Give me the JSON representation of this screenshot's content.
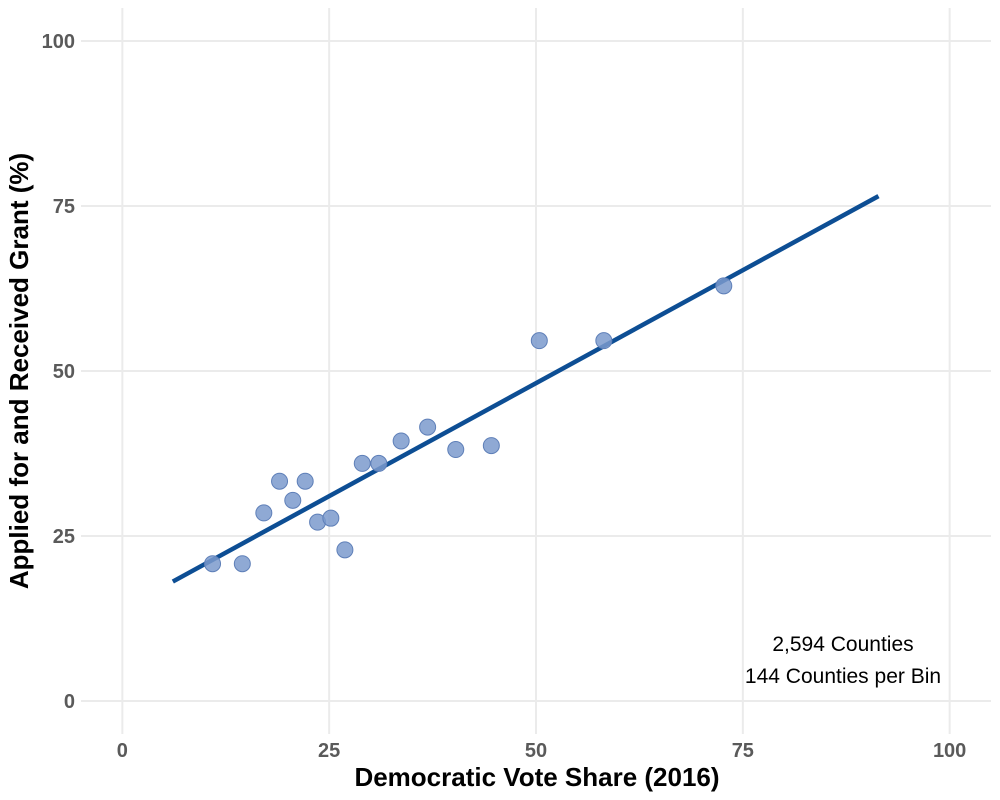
{
  "chart_data": {
    "type": "scatter",
    "title": "",
    "xlabel": "Democratic Vote Share (2016)",
    "ylabel": "Applied for and Received Grant (%)",
    "xlim": [
      -5,
      105
    ],
    "ylim": [
      -5,
      105
    ],
    "x_ticks": [
      0,
      25,
      50,
      75,
      100
    ],
    "y_ticks": [
      0,
      25,
      50,
      75,
      100
    ],
    "x_tick_labels": [
      "0",
      "25",
      "50",
      "75",
      "100"
    ],
    "y_tick_labels": [
      "0",
      "25",
      "50",
      "75",
      "100"
    ],
    "grid": true,
    "legend": "none",
    "points": [
      {
        "x": 10.9,
        "y": 20.8
      },
      {
        "x": 14.5,
        "y": 20.8
      },
      {
        "x": 17.1,
        "y": 28.5
      },
      {
        "x": 19.0,
        "y": 33.3
      },
      {
        "x": 20.6,
        "y": 30.4
      },
      {
        "x": 22.1,
        "y": 33.3
      },
      {
        "x": 23.6,
        "y": 27.1
      },
      {
        "x": 25.2,
        "y": 27.7
      },
      {
        "x": 26.9,
        "y": 22.9
      },
      {
        "x": 29.0,
        "y": 36.0
      },
      {
        "x": 31.0,
        "y": 36.0
      },
      {
        "x": 33.7,
        "y": 39.4
      },
      {
        "x": 36.9,
        "y": 41.5
      },
      {
        "x": 40.3,
        "y": 38.1
      },
      {
        "x": 44.6,
        "y": 38.7
      },
      {
        "x": 50.4,
        "y": 54.6
      },
      {
        "x": 58.2,
        "y": 54.6
      },
      {
        "x": 72.7,
        "y": 62.9
      }
    ],
    "fit_line": {
      "x": [
        6.1,
        91.4
      ],
      "y": [
        18.1,
        76.5
      ]
    },
    "annotations": [
      "2,594 Counties",
      "144 Counties per Bin"
    ],
    "colors": {
      "points": "#7b9acc",
      "points_stroke": "#5e7fb8",
      "line": "#0d4e94"
    }
  }
}
